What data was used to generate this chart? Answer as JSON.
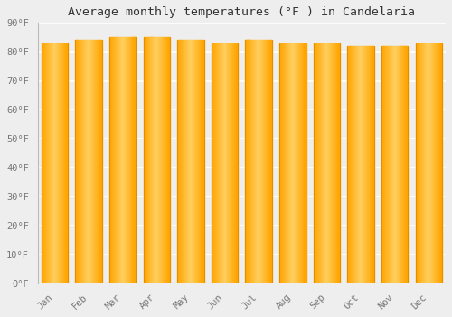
{
  "title": "Average monthly temperatures (°F ) in Candelaria",
  "months": [
    "Jan",
    "Feb",
    "Mar",
    "Apr",
    "May",
    "Jun",
    "Jul",
    "Aug",
    "Sep",
    "Oct",
    "Nov",
    "Dec"
  ],
  "values": [
    83,
    84,
    85,
    85,
    84,
    83,
    84,
    83,
    83,
    82,
    82,
    83
  ],
  "ylim": [
    0,
    90
  ],
  "yticks": [
    0,
    10,
    20,
    30,
    40,
    50,
    60,
    70,
    80,
    90
  ],
  "ytick_labels": [
    "0°F",
    "10°F",
    "20°F",
    "30°F",
    "40°F",
    "50°F",
    "60°F",
    "70°F",
    "80°F",
    "90°F"
  ],
  "bar_color_center": "#FFD060",
  "bar_color_edge": "#FFA500",
  "bar_border_color": "#D08800",
  "background_color": "#eeeeee",
  "grid_color": "#ffffff",
  "title_fontsize": 9.5,
  "tick_fontsize": 7.5,
  "bar_width": 0.78,
  "n_gradient_slices": 30
}
